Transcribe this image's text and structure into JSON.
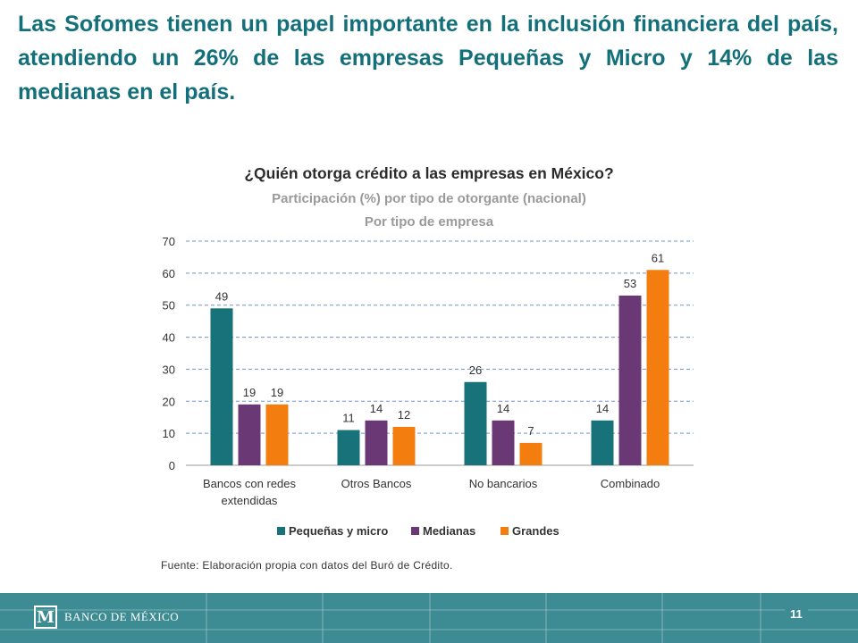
{
  "headline": "Las Sofomes tienen un papel importante en la inclusión financiera del país, atendiendo un 26% de las empresas Pequeñas y Micro y 14% de las medianas en el país.",
  "chart_data": {
    "type": "bar",
    "title": "¿Quién otorga crédito a las empresas en México?",
    "subtitle_lines": [
      "Participación (%) por tipo de otorgante (nacional)",
      "Por tipo de empresa"
    ],
    "categories": [
      [
        "Bancos con redes",
        "extendidas"
      ],
      [
        "Otros Bancos"
      ],
      [
        "No bancarios"
      ],
      [
        "Combinado"
      ]
    ],
    "series": [
      {
        "name": "Pequeñas y micro",
        "color": "#17727a",
        "values": [
          49,
          11,
          26,
          14
        ]
      },
      {
        "name": "Medianas",
        "color": "#6a3874",
        "values": [
          19,
          14,
          14,
          53
        ]
      },
      {
        "name": "Grandes",
        "color": "#f47d0f",
        "values": [
          19,
          12,
          7,
          61
        ]
      }
    ],
    "ylim": [
      0,
      70
    ],
    "yticks": [
      0,
      10,
      20,
      30,
      40,
      50,
      60,
      70
    ],
    "grid": true,
    "legend_position": "bottom",
    "xlabel": "",
    "ylabel": ""
  },
  "source": "Fuente: Elaboración propia con datos del Buró de Crédito.",
  "footer": {
    "logo_text": "BANCO DE MÉXICO",
    "page_number": "11"
  }
}
